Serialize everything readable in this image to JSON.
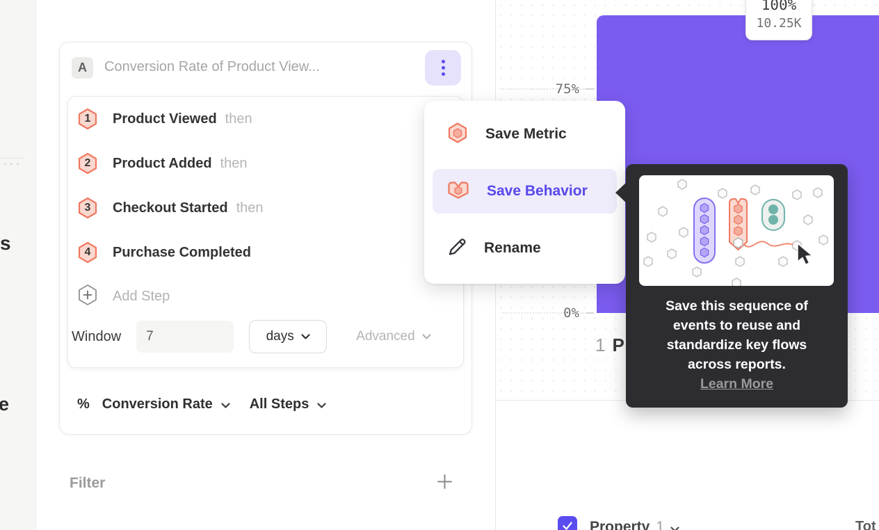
{
  "sidebar": {
    "fragment_top": "s",
    "fragment_bottom": "e"
  },
  "query_builder": {
    "series_badge": "A",
    "title": "Conversion Rate of Product View...",
    "steps": [
      {
        "num": "1",
        "name": "Product Viewed",
        "connector": "then"
      },
      {
        "num": "2",
        "name": "Product Added",
        "connector": "then"
      },
      {
        "num": "3",
        "name": "Checkout Started",
        "connector": "then"
      },
      {
        "num": "4",
        "name": "Purchase Completed",
        "connector": ""
      }
    ],
    "add_step_label": "Add Step",
    "window": {
      "label": "Window",
      "value": "7",
      "unit": "days",
      "advanced_label": "Advanced"
    },
    "measurement": {
      "symbol": "%",
      "metric": "Conversion Rate",
      "scope": "All Steps"
    },
    "filter": {
      "label": "Filter"
    }
  },
  "context_menu": {
    "items": [
      {
        "label": "Save Metric",
        "icon": "metric-hexagon-icon",
        "highlighted": false
      },
      {
        "label": "Save Behavior",
        "icon": "behavior-flag-icon",
        "highlighted": true
      },
      {
        "label": "Rename",
        "icon": "pencil-icon",
        "highlighted": false
      }
    ]
  },
  "save_tooltip": {
    "line1": "Save this sequence of",
    "line2": "events to reuse and",
    "line3": "standardize key flows",
    "line4": "across reports.",
    "link_label": "Learn More"
  },
  "chart_data": {
    "type": "bar",
    "categories": [
      "1 P"
    ],
    "values": [
      100
    ],
    "counts": [
      "10.25K"
    ],
    "value_label": {
      "percent": "100%",
      "count": "10.25K"
    },
    "y_ticks": [
      "75%",
      "0%"
    ],
    "ylim": [
      0,
      100
    ],
    "bar_color": "#7b5cf0",
    "x_label": {
      "num": "1",
      "text_fragment": "P"
    },
    "legend": {
      "checkbox_checked": true,
      "property_label": "Property",
      "property_num": "1",
      "total_header_fragment": "Tot"
    }
  },
  "colors": {
    "accent_purple": "#5b4cf0",
    "bar_purple": "#7b5cf0",
    "salmon": "#ee7961",
    "salmon_fill": "#fbd8cf",
    "teal": "#6fb3aa",
    "tooltip_bg": "#2d2d31",
    "menu_highlight": "#efecfc"
  }
}
